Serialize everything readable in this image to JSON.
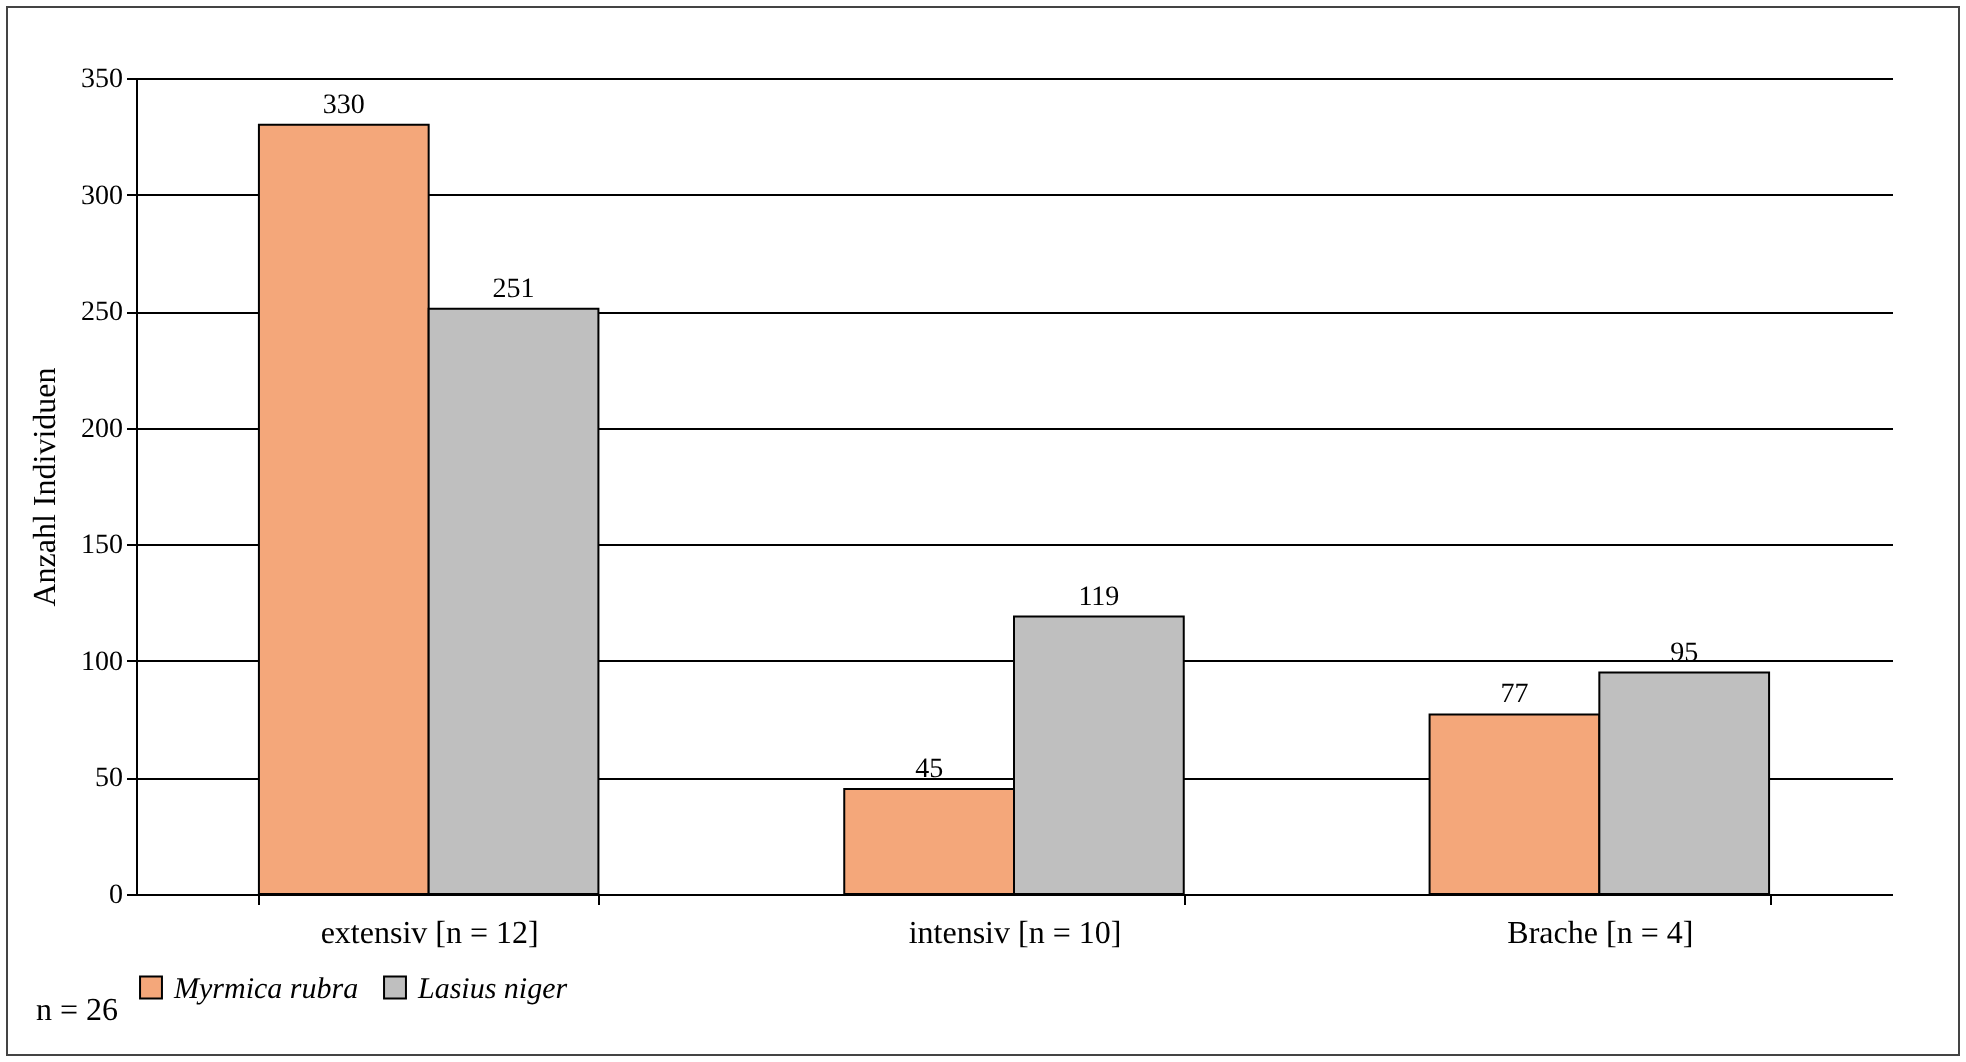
{
  "chart_data": {
    "type": "bar",
    "ylabel": "Anzahl Individuen",
    "categories": [
      "extensiv [n = 12]",
      "intensiv [n = 10]",
      "Brache [n = 4]"
    ],
    "series": [
      {
        "name": "Myrmica rubra",
        "color": "#f4a77a",
        "values": [
          330,
          45,
          77
        ]
      },
      {
        "name": "Lasius niger",
        "color": "#bfbfbf",
        "values": [
          251,
          119,
          95
        ]
      }
    ],
    "ylim": [
      0,
      350
    ],
    "yticks": [
      0,
      50,
      100,
      150,
      200,
      250,
      300,
      350
    ],
    "grid": "y",
    "legend": "bottom",
    "data_labels": true,
    "annotations": [
      "n = 26"
    ]
  }
}
